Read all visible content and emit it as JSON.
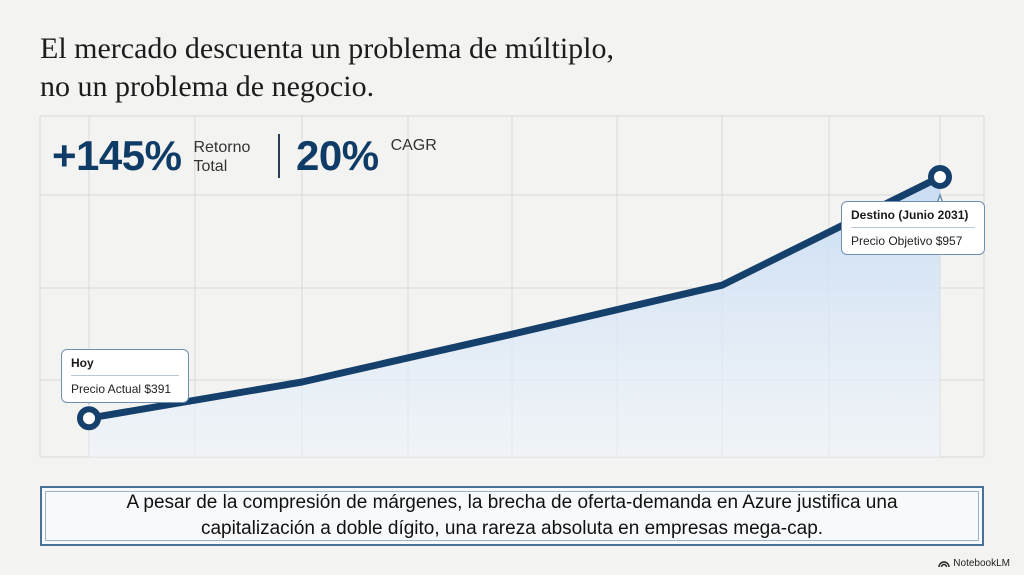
{
  "title_lines": [
    "El mercado descuenta un problema de múltiplo,",
    "no un problema de negocio."
  ],
  "kpis": [
    {
      "value": "+145%",
      "label_lines": [
        "Retorno",
        "Total"
      ]
    },
    {
      "value": "20%",
      "label_lines": [
        "CAGR"
      ]
    }
  ],
  "callouts": {
    "start": {
      "heading": "Hoy",
      "text": "Precio Actual $391"
    },
    "end": {
      "heading": "Destino (Junio 2031)",
      "text": "Precio Objetivo $957"
    }
  },
  "banner_lines": [
    "A pesar de la compresión de márgenes, la brecha de oferta-demanda en Azure justifica una",
    "capitalización a doble dígito, una rareza absoluta en empresas mega-cap."
  ],
  "brand": {
    "name": "NotebookLM",
    "icon": "notebooklm-logo-icon"
  },
  "colors": {
    "line": "#14406b",
    "area": "#cfe0f4",
    "grid": "#d9d9d9",
    "accent": "#0f3c66"
  },
  "chart_data": {
    "type": "area",
    "title": "",
    "xlabel": "",
    "ylabel": "",
    "grid": true,
    "series": [
      {
        "values": [
          391,
          476,
          588,
          703,
          957
        ]
      }
    ],
    "annotations": [
      {
        "point_index": 0,
        "label": "Hoy",
        "value": "Precio Actual $391"
      },
      {
        "point_index": 4,
        "label": "Destino (Junio 2031)",
        "value": "Precio Objetivo $957"
      }
    ],
    "ylim": [
      300,
      1100
    ]
  }
}
